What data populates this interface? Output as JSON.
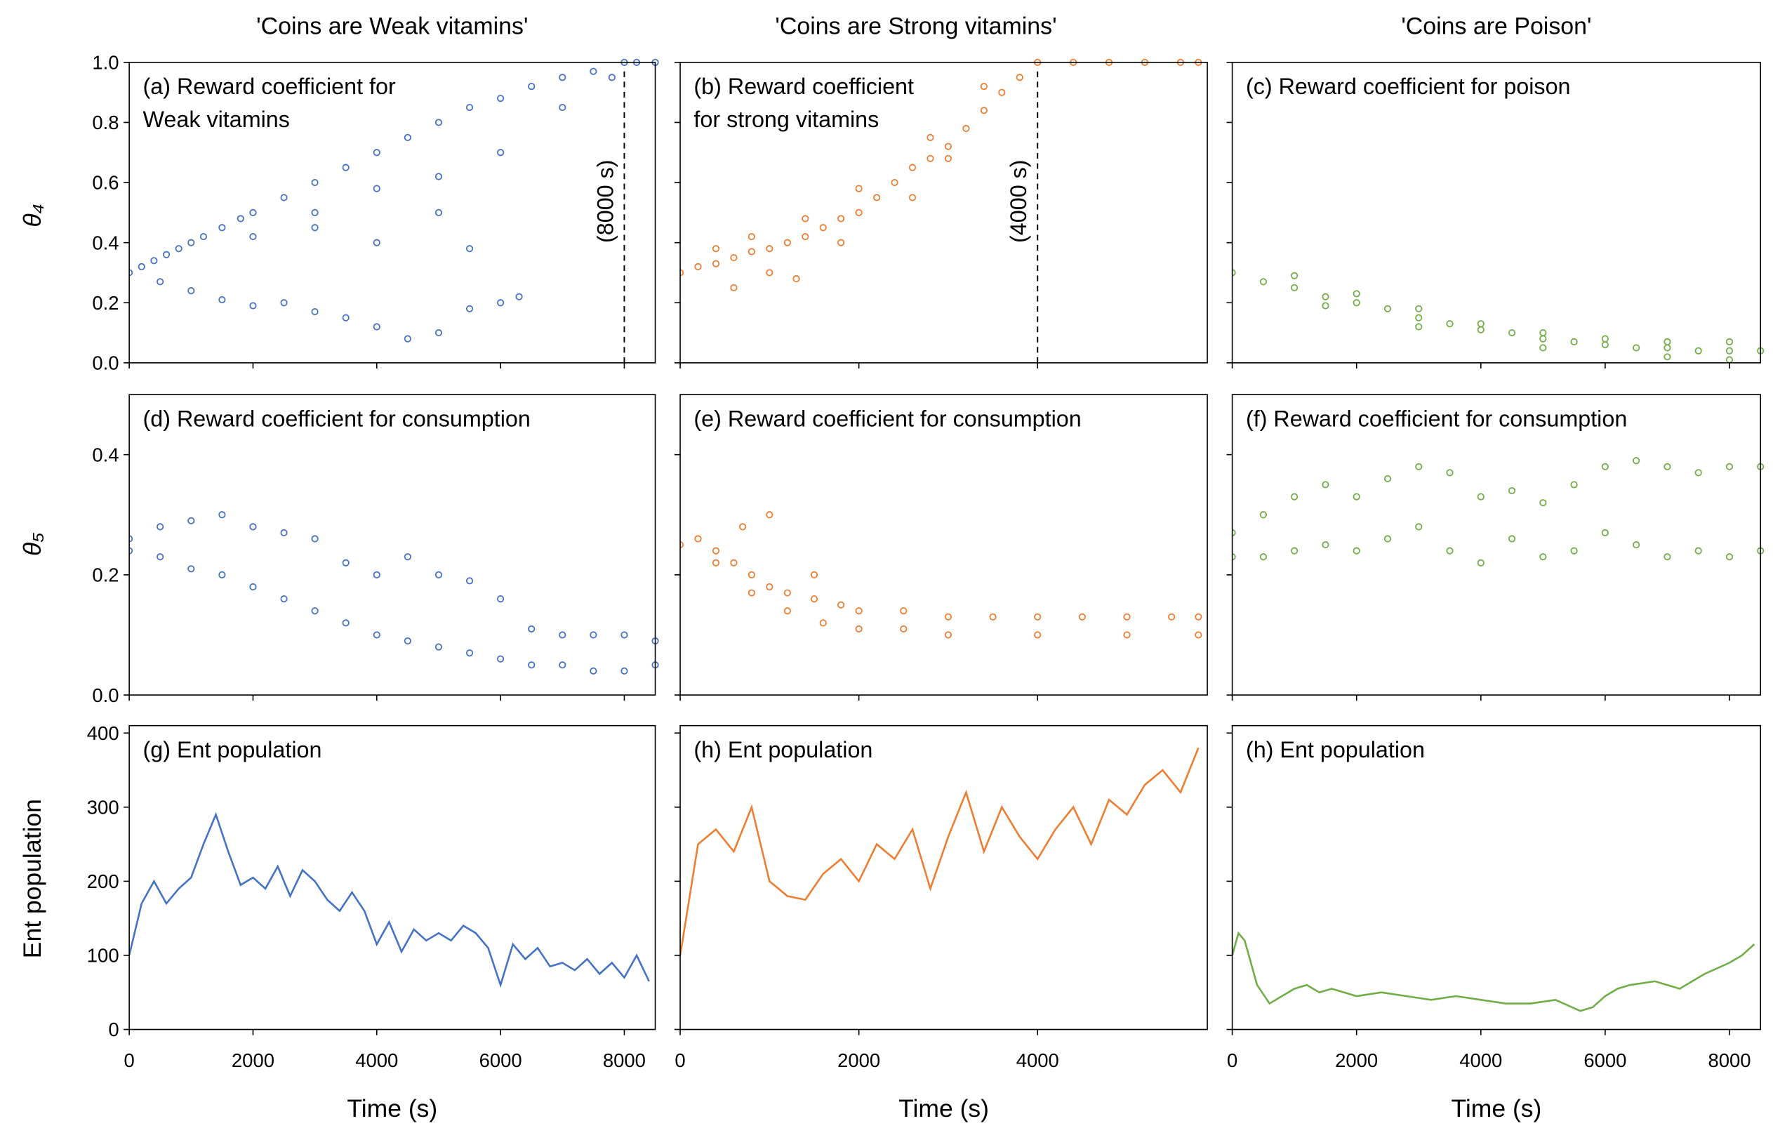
{
  "column_titles": [
    "'Coins are Weak vitamins'",
    "'Coins are Strong vitamins'",
    "'Coins are Poison'"
  ],
  "chart_data": [
    {
      "type": "scatter",
      "title_lines": [
        "(a) Reward coefficient for",
        "Weak vitamins"
      ],
      "ylabel": "θ₄",
      "color": "#4472c4",
      "xlim": [
        0,
        8500
      ],
      "xticks": [
        0,
        2000,
        4000,
        6000,
        8000
      ],
      "xtick_labels": false,
      "ylim": [
        0,
        1
      ],
      "yticks": [
        {
          "value": 0,
          "label": "0.0"
        },
        0.2,
        0.4,
        0.6,
        0.8,
        {
          "value": 1,
          "label": "1.0"
        }
      ],
      "ytick_labels": true,
      "annotations": [
        {
          "x": 8000,
          "label": "(8000 s)"
        }
      ],
      "x": [
        0,
        200,
        400,
        600,
        800,
        1000,
        1200,
        1500,
        1800,
        2000,
        2500,
        3000,
        3500,
        4000,
        4500,
        5000,
        5500,
        6000,
        6500,
        7000,
        7500,
        8000,
        8200,
        8500,
        500,
        1000,
        1500,
        2000,
        2500,
        3000,
        3500,
        4000,
        4500,
        5000,
        5500,
        6000,
        6300,
        2000,
        3000,
        4000,
        5000,
        5500,
        3000,
        4000,
        5000,
        6000,
        7000,
        7800
      ],
      "y": [
        0.3,
        0.32,
        0.34,
        0.36,
        0.38,
        0.4,
        0.42,
        0.45,
        0.48,
        0.5,
        0.55,
        0.6,
        0.65,
        0.7,
        0.75,
        0.8,
        0.85,
        0.88,
        0.92,
        0.95,
        0.97,
        1.0,
        1.0,
        1.0,
        0.27,
        0.24,
        0.21,
        0.19,
        0.2,
        0.17,
        0.15,
        0.12,
        0.08,
        0.1,
        0.18,
        0.2,
        0.22,
        0.42,
        0.45,
        0.4,
        0.5,
        0.38,
        0.5,
        0.58,
        0.62,
        0.7,
        0.85,
        0.95
      ]
    },
    {
      "type": "scatter",
      "title_lines": [
        "(b) Reward coefficient",
        "for strong vitamins"
      ],
      "color": "#ed7d31",
      "xlim": [
        0,
        5900
      ],
      "xticks": [
        0,
        2000,
        4000
      ],
      "xtick_labels": false,
      "ylim": [
        0,
        1
      ],
      "yticks": [
        0,
        0.2,
        0.4,
        0.6,
        0.8,
        1
      ],
      "ytick_labels": false,
      "annotations": [
        {
          "x": 4000,
          "label": "(4000 s)"
        }
      ],
      "x": [
        0,
        200,
        400,
        600,
        800,
        1000,
        1200,
        1400,
        1600,
        1800,
        2000,
        2200,
        2400,
        2600,
        2800,
        3000,
        3200,
        3400,
        3600,
        3800,
        4000,
        4400,
        4800,
        5200,
        5600,
        5800,
        600,
        1000,
        1300,
        1800,
        2600,
        3000,
        400,
        800,
        1400,
        2000,
        2800,
        3400
      ],
      "y": [
        0.3,
        0.32,
        0.33,
        0.35,
        0.37,
        0.38,
        0.4,
        0.42,
        0.45,
        0.48,
        0.5,
        0.55,
        0.6,
        0.65,
        0.68,
        0.72,
        0.78,
        0.84,
        0.9,
        0.95,
        1.0,
        1.0,
        1.0,
        1.0,
        1.0,
        1.0,
        0.25,
        0.3,
        0.28,
        0.4,
        0.55,
        0.68,
        0.38,
        0.42,
        0.48,
        0.58,
        0.75,
        0.92
      ]
    },
    {
      "type": "scatter",
      "title_lines": [
        "(c) Reward coefficient for poison"
      ],
      "color": "#70ad47",
      "xlim": [
        0,
        8500
      ],
      "xticks": [
        0,
        2000,
        4000,
        6000,
        8000
      ],
      "xtick_labels": false,
      "ylim": [
        0,
        1
      ],
      "yticks": [
        0,
        0.2,
        0.4,
        0.6,
        0.8,
        1
      ],
      "ytick_labels": false,
      "x": [
        0,
        500,
        1000,
        1500,
        2000,
        2500,
        3000,
        3500,
        4000,
        4500,
        5000,
        5500,
        6000,
        6500,
        7000,
        7500,
        8000,
        8500,
        1000,
        2000,
        3000,
        4000,
        5000,
        6000,
        7000,
        8000,
        1500,
        3000,
        5000,
        7000,
        8000
      ],
      "y": [
        0.3,
        0.27,
        0.25,
        0.22,
        0.2,
        0.18,
        0.15,
        0.13,
        0.11,
        0.1,
        0.08,
        0.07,
        0.06,
        0.05,
        0.05,
        0.04,
        0.04,
        0.04,
        0.29,
        0.23,
        0.18,
        0.13,
        0.1,
        0.08,
        0.07,
        0.07,
        0.19,
        0.12,
        0.05,
        0.02,
        0.01
      ]
    },
    {
      "type": "scatter",
      "title_lines": [
        "(d) Reward coefficient for consumption"
      ],
      "ylabel": "θ₅",
      "color": "#4472c4",
      "xlim": [
        0,
        8500
      ],
      "xticks": [
        0,
        2000,
        4000,
        6000,
        8000
      ],
      "xtick_labels": false,
      "ylim": [
        0,
        0.5
      ],
      "yticks": [
        {
          "value": 0,
          "label": "0.0"
        },
        0.2,
        0.4
      ],
      "ytick_labels": true,
      "x": [
        0,
        500,
        1000,
        1500,
        2000,
        2500,
        3000,
        3500,
        4000,
        4500,
        5000,
        5500,
        6000,
        6500,
        7000,
        7500,
        8000,
        8500,
        0,
        500,
        1000,
        1500,
        2000,
        2500,
        3000,
        3500,
        4000,
        4500,
        5000,
        5500,
        6000,
        6500,
        7000,
        7500,
        8000,
        8500
      ],
      "y": [
        0.26,
        0.28,
        0.29,
        0.3,
        0.28,
        0.27,
        0.26,
        0.22,
        0.2,
        0.23,
        0.2,
        0.19,
        0.16,
        0.11,
        0.1,
        0.1,
        0.1,
        0.09,
        0.24,
        0.23,
        0.21,
        0.2,
        0.18,
        0.16,
        0.14,
        0.12,
        0.1,
        0.09,
        0.08,
        0.07,
        0.06,
        0.05,
        0.05,
        0.04,
        0.04,
        0.05
      ]
    },
    {
      "type": "scatter",
      "title_lines": [
        "(e) Reward coefficient for consumption"
      ],
      "color": "#ed7d31",
      "xlim": [
        0,
        5900
      ],
      "xticks": [
        0,
        2000,
        4000
      ],
      "xtick_labels": false,
      "ylim": [
        0,
        0.5
      ],
      "yticks": [
        0,
        0.2,
        0.4
      ],
      "ytick_labels": false,
      "x": [
        0,
        200,
        400,
        600,
        800,
        1000,
        1200,
        1500,
        1800,
        2000,
        2500,
        3000,
        3500,
        4000,
        4500,
        5000,
        5500,
        5800,
        400,
        800,
        1200,
        1600,
        2000,
        2500,
        3000,
        4000,
        5000,
        5800,
        700,
        1000,
        1500
      ],
      "y": [
        0.25,
        0.26,
        0.24,
        0.22,
        0.2,
        0.18,
        0.17,
        0.16,
        0.15,
        0.14,
        0.14,
        0.13,
        0.13,
        0.13,
        0.13,
        0.13,
        0.13,
        0.13,
        0.22,
        0.17,
        0.14,
        0.12,
        0.11,
        0.11,
        0.1,
        0.1,
        0.1,
        0.1,
        0.28,
        0.3,
        0.2
      ]
    },
    {
      "type": "scatter",
      "title_lines": [
        "(f) Reward coefficient for consumption"
      ],
      "color": "#70ad47",
      "xlim": [
        0,
        8500
      ],
      "xticks": [
        0,
        2000,
        4000,
        6000,
        8000
      ],
      "xtick_labels": false,
      "ylim": [
        0,
        0.5
      ],
      "yticks": [
        0,
        0.2,
        0.4
      ],
      "ytick_labels": false,
      "x": [
        0,
        500,
        1000,
        1500,
        2000,
        2500,
        3000,
        3500,
        4000,
        4500,
        5000,
        5500,
        6000,
        6500,
        7000,
        7500,
        8000,
        8500,
        0,
        500,
        1000,
        1500,
        2000,
        2500,
        3000,
        3500,
        4000,
        4500,
        5000,
        5500,
        6000,
        6500,
        7000,
        7500,
        8000,
        8500
      ],
      "y": [
        0.27,
        0.3,
        0.33,
        0.35,
        0.33,
        0.36,
        0.38,
        0.37,
        0.33,
        0.34,
        0.32,
        0.35,
        0.38,
        0.39,
        0.38,
        0.37,
        0.38,
        0.38,
        0.23,
        0.23,
        0.24,
        0.25,
        0.24,
        0.26,
        0.28,
        0.24,
        0.22,
        0.26,
        0.23,
        0.24,
        0.27,
        0.25,
        0.23,
        0.24,
        0.23,
        0.24
      ]
    },
    {
      "type": "line",
      "title_lines": [
        "(g) Ent population"
      ],
      "ylabel": "Ent population",
      "xlabel": "Time (s)",
      "color": "#4472c4",
      "xlim": [
        0,
        8500
      ],
      "xticks": [
        0,
        2000,
        4000,
        6000,
        8000
      ],
      "xtick_labels": true,
      "ylim": [
        0,
        410
      ],
      "yticks": [
        0,
        100,
        200,
        300,
        400
      ],
      "ytick_labels": true,
      "x": [
        0,
        200,
        400,
        600,
        800,
        1000,
        1200,
        1400,
        1600,
        1800,
        2000,
        2200,
        2400,
        2600,
        2800,
        3000,
        3200,
        3400,
        3600,
        3800,
        4000,
        4200,
        4400,
        4600,
        4800,
        5000,
        5200,
        5400,
        5600,
        5800,
        6000,
        6200,
        6400,
        6600,
        6800,
        7000,
        7200,
        7400,
        7600,
        7800,
        8000,
        8200,
        8400
      ],
      "values": [
        100,
        170,
        200,
        170,
        190,
        205,
        250,
        290,
        240,
        195,
        205,
        190,
        220,
        180,
        215,
        200,
        175,
        160,
        185,
        160,
        115,
        145,
        105,
        135,
        120,
        130,
        120,
        140,
        130,
        110,
        60,
        115,
        95,
        110,
        85,
        90,
        80,
        95,
        75,
        90,
        70,
        100,
        65
      ]
    },
    {
      "type": "line",
      "title_lines": [
        "(h) Ent population"
      ],
      "xlabel": "Time (s)",
      "color": "#ed7d31",
      "xlim": [
        0,
        5900
      ],
      "xticks": [
        0,
        2000,
        4000
      ],
      "xtick_labels": true,
      "ylim": [
        0,
        410
      ],
      "yticks": [
        0,
        100,
        200,
        300,
        400
      ],
      "ytick_labels": false,
      "x": [
        0,
        200,
        400,
        600,
        800,
        1000,
        1200,
        1400,
        1600,
        1800,
        2000,
        2200,
        2400,
        2600,
        2800,
        3000,
        3200,
        3400,
        3600,
        3800,
        4000,
        4200,
        4400,
        4600,
        4800,
        5000,
        5200,
        5400,
        5600,
        5800
      ],
      "values": [
        100,
        250,
        270,
        240,
        300,
        200,
        180,
        175,
        210,
        230,
        200,
        250,
        230,
        270,
        190,
        260,
        320,
        240,
        300,
        260,
        230,
        270,
        300,
        250,
        310,
        290,
        330,
        350,
        320,
        380
      ]
    },
    {
      "type": "line",
      "title_lines": [
        "(h) Ent population"
      ],
      "xlabel": "Time (s)",
      "color": "#70ad47",
      "xlim": [
        0,
        8500
      ],
      "xticks": [
        0,
        2000,
        4000,
        6000,
        8000
      ],
      "xtick_labels": true,
      "ylim": [
        0,
        410
      ],
      "yticks": [
        0,
        100,
        200,
        300,
        400
      ],
      "ytick_labels": false,
      "x": [
        0,
        100,
        200,
        400,
        600,
        800,
        1000,
        1200,
        1400,
        1600,
        1800,
        2000,
        2400,
        2800,
        3200,
        3600,
        4000,
        4400,
        4800,
        5200,
        5600,
        5800,
        6000,
        6200,
        6400,
        6800,
        7200,
        7600,
        8000,
        8200,
        8400
      ],
      "values": [
        100,
        130,
        120,
        60,
        35,
        45,
        55,
        60,
        50,
        55,
        50,
        45,
        50,
        45,
        40,
        45,
        40,
        35,
        35,
        40,
        25,
        30,
        45,
        55,
        60,
        65,
        55,
        75,
        90,
        100,
        115
      ]
    }
  ]
}
